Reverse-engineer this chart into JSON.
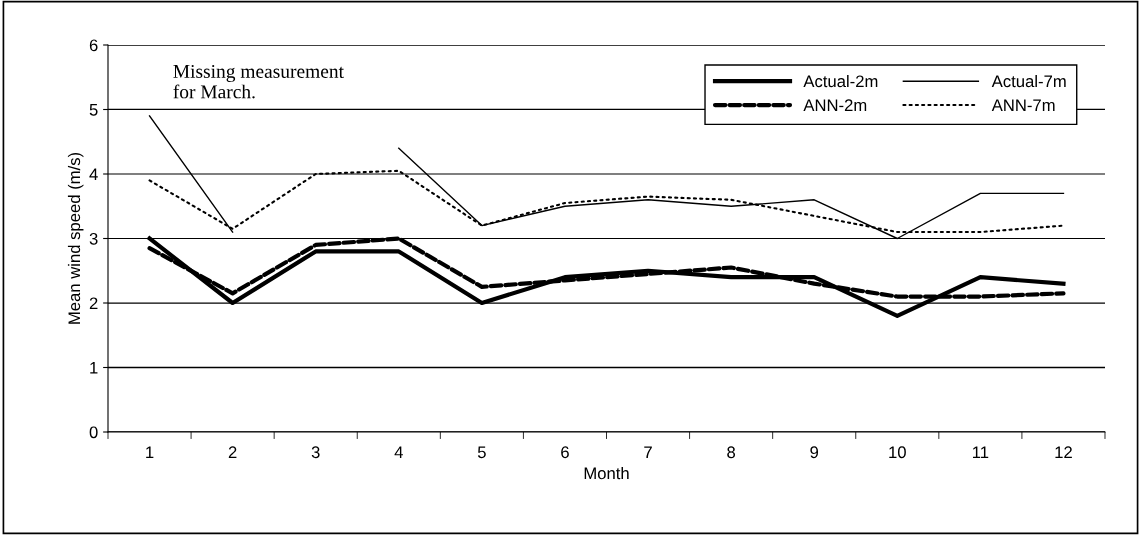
{
  "chart_data": {
    "type": "line",
    "xlabel": "Month",
    "ylabel": "Mean wind speed (m/s)",
    "categories": [
      "1",
      "2",
      "3",
      "4",
      "5",
      "6",
      "7",
      "8",
      "9",
      "10",
      "11",
      "12"
    ],
    "ylim": [
      0,
      6
    ],
    "yticks": [
      0,
      1,
      2,
      3,
      4,
      5,
      6
    ],
    "grid": "y",
    "legend": "top right",
    "marker": "none",
    "series": [
      {
        "name": "Actual-2m",
        "color": "#000000",
        "line_style": "solid",
        "values": [
          3.0,
          2.0,
          2.8,
          2.8,
          2.0,
          2.4,
          2.5,
          2.4,
          2.4,
          1.8,
          2.4,
          2.3
        ]
      },
      {
        "name": "Actual-7m",
        "color": "#000000",
        "line_style": "solid",
        "values": [
          4.9,
          3.1,
          null,
          4.4,
          3.2,
          3.5,
          3.6,
          3.5,
          3.6,
          3.0,
          3.7,
          3.7
        ]
      },
      {
        "name": "ANN-2m",
        "color": "#000000",
        "line_style": "dashed",
        "values": [
          2.85,
          2.15,
          2.9,
          3.0,
          2.25,
          2.35,
          2.45,
          2.55,
          2.3,
          2.1,
          2.1,
          2.15
        ]
      },
      {
        "name": "ANN-7m",
        "color": "#000000",
        "line_style": "dotted",
        "values": [
          3.9,
          3.15,
          4.0,
          4.05,
          3.2,
          3.55,
          3.65,
          3.6,
          3.35,
          3.1,
          3.1,
          3.2
        ]
      }
    ],
    "annotations": [
      "Missing measurement\nfor March."
    ]
  }
}
